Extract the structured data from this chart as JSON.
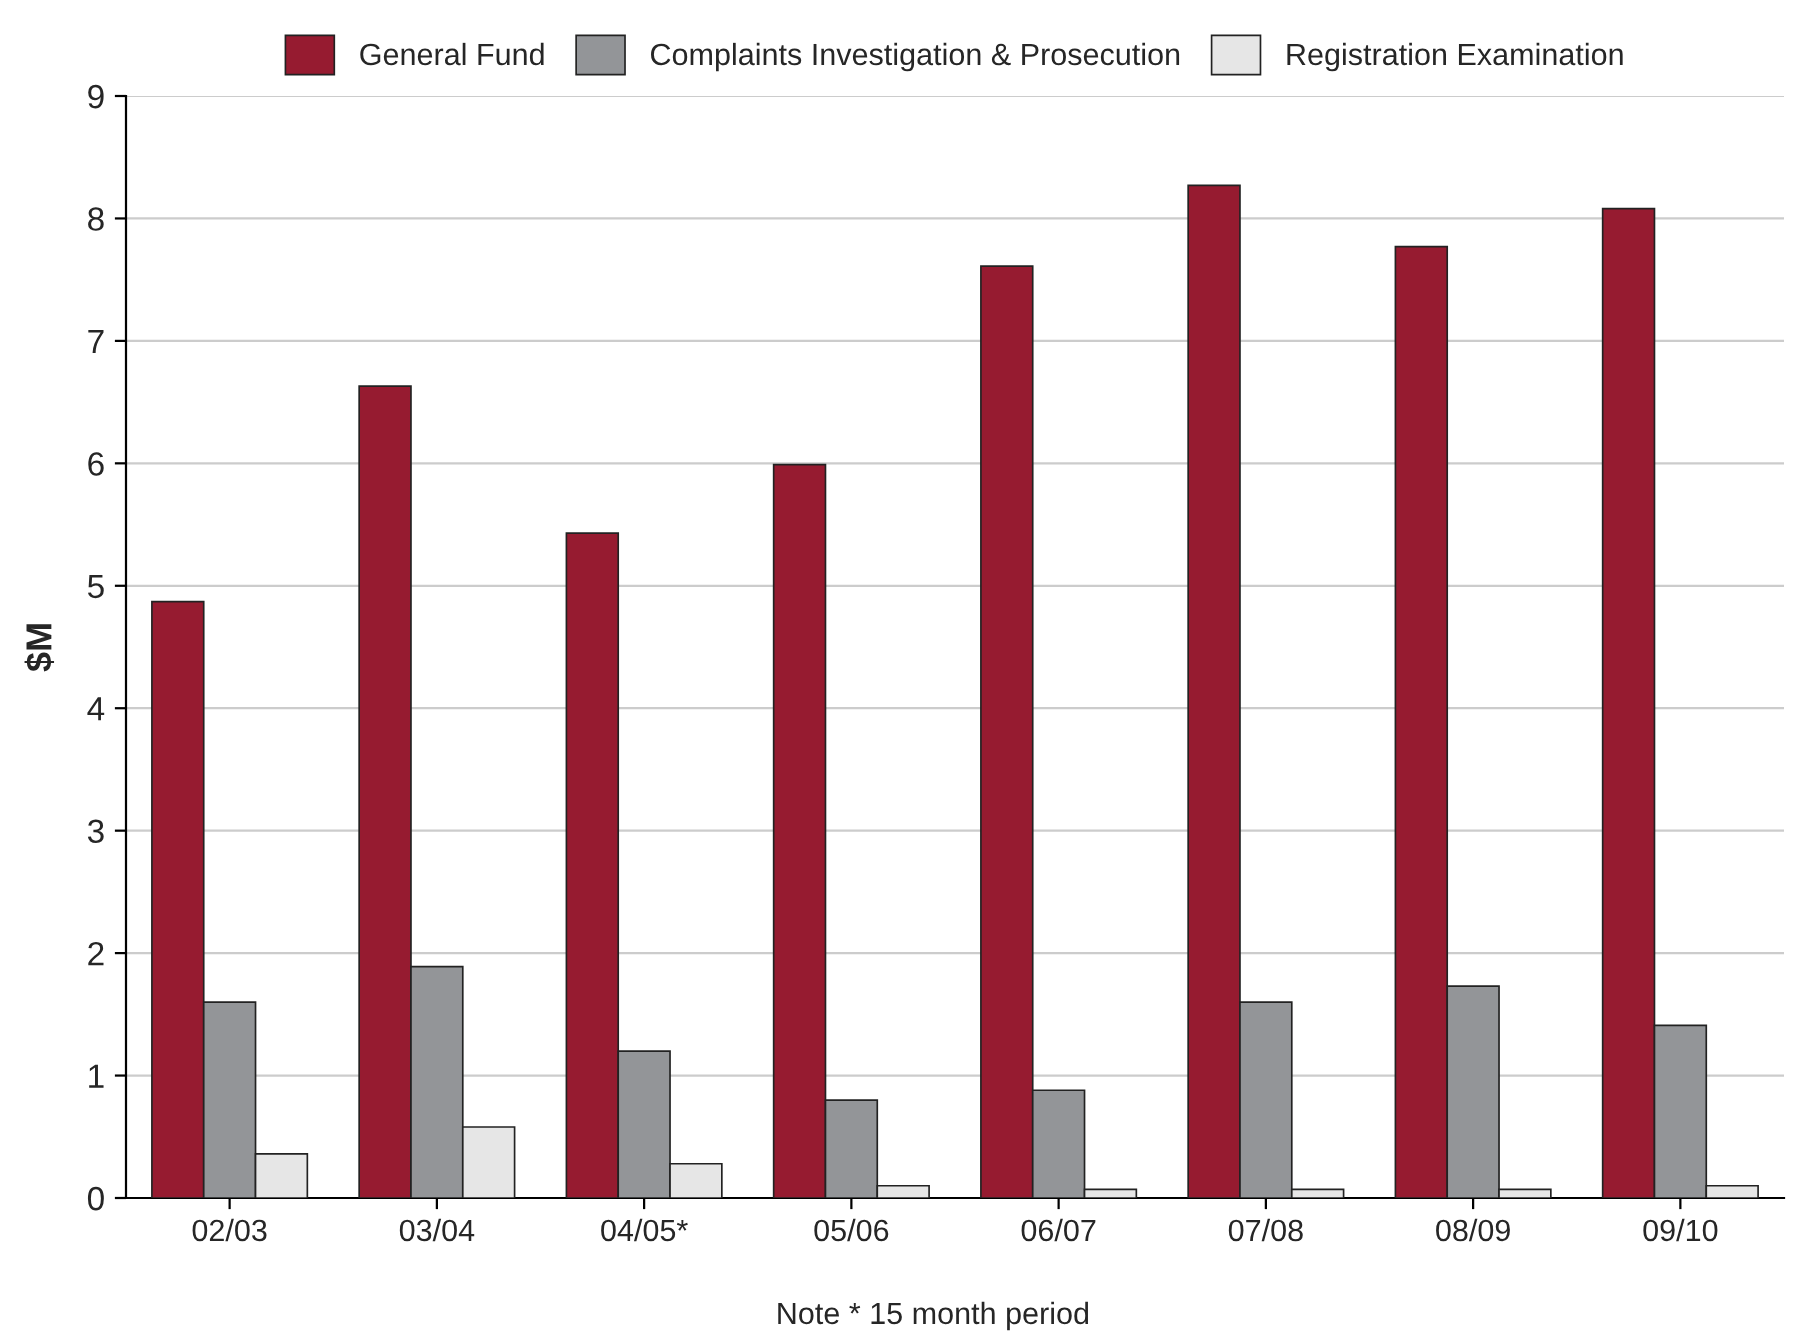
{
  "chart_data": {
    "type": "bar",
    "ylabel": "$M",
    "categories": [
      "02/03",
      "03/04",
      "04/05*",
      "05/06",
      "06/07",
      "07/08",
      "08/09",
      "09/10"
    ],
    "series": [
      {
        "name": "General Fund",
        "color": "#961b30",
        "values": [
          4.87,
          6.63,
          5.43,
          5.99,
          7.61,
          8.27,
          7.77,
          8.08
        ]
      },
      {
        "name": "Complaints Investigation & Prosecution",
        "color": "#939598",
        "values": [
          1.6,
          1.89,
          1.2,
          0.8,
          0.88,
          1.6,
          1.73,
          1.41
        ]
      },
      {
        "name": "Registration Examination",
        "color": "#e6e6e6",
        "values": [
          0.36,
          0.58,
          0.28,
          0.1,
          0.07,
          0.07,
          0.07,
          0.1
        ]
      }
    ],
    "ylim": [
      0,
      9
    ],
    "yticks": [
      0,
      1,
      2,
      3,
      4,
      5,
      6,
      7,
      8,
      9
    ],
    "grid": "y",
    "legend": "top",
    "annotations": [
      "Note * 15 month period"
    ]
  }
}
